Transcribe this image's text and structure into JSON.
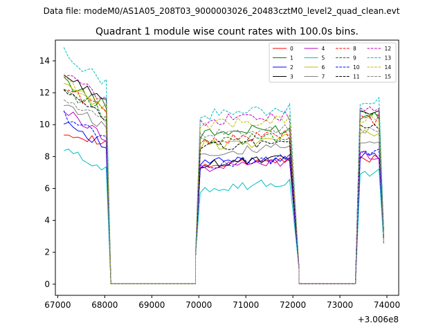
{
  "header": {
    "suptitle": "Data file: modeM0/AS1A05_208T03_9000003026_20483cztM0_level2_quad_clean.evt"
  },
  "chart_data": {
    "type": "line",
    "title": "Quadrant 1 module wise count rates with 100.0s bins.",
    "xlabel": "",
    "ylabel": "",
    "x_offset_label": "+3.006e8",
    "xlim": [
      66950,
      74250
    ],
    "ylim": [
      -0.7,
      15.3
    ],
    "xticks": [
      67000,
      68000,
      69000,
      70000,
      71000,
      72000,
      73000,
      74000
    ],
    "xtick_labels": [
      "67000",
      "68000",
      "69000",
      "70000",
      "71000",
      "72000",
      "73000",
      "74000"
    ],
    "yticks": [
      0,
      2,
      4,
      6,
      8,
      10,
      12,
      14
    ],
    "ytick_labels": [
      "0",
      "2",
      "4",
      "6",
      "8",
      "10",
      "12",
      "14"
    ],
    "segments": [
      {
        "x": [
          67130,
          67230,
          67330,
          67430,
          67530,
          67630,
          67730,
          67830,
          67930,
          68030
        ],
        "drop_end": 68130
      },
      {
        "x": [
          70030,
          70130,
          70230,
          70330,
          70430,
          70530,
          70630,
          70730,
          70830,
          70930,
          71030,
          71130,
          71230,
          71330,
          71430,
          71530,
          71630,
          71730,
          71830,
          71930
        ],
        "rise_start": 69930,
        "drop_end": 72130
      },
      {
        "x": [
          73430,
          73530,
          73630,
          73730,
          73830
        ],
        "rise_start": 73330,
        "drop_end": 73930
      }
    ],
    "gaps": [
      {
        "x": [
          68130,
          68230,
          68330,
          68430,
          68530,
          68630,
          68730,
          68830,
          68930,
          69030,
          69130,
          69230,
          69330,
          69430,
          69530,
          69630,
          69730,
          69830,
          69930
        ]
      },
      {
        "x": [
          72130,
          72230,
          72330,
          72430,
          72530,
          72630,
          72730,
          72830,
          72930,
          73030,
          73130,
          73230,
          73330
        ]
      }
    ],
    "legend": {
      "placement": "top-right",
      "ncol": 4
    },
    "series": [
      {
        "name": "0",
        "color": "#ff0000",
        "dash": false,
        "levels": [
          9.6,
          8.8,
          7.4,
          7.9
        ],
        "noise": 0.25
      },
      {
        "name": "1",
        "color": "#008000",
        "dash": false,
        "levels": [
          12.7,
          11.2,
          9.4,
          10.5
        ],
        "noise": 0.35
      },
      {
        "name": "2",
        "color": "#0000ff",
        "dash": false,
        "levels": [
          10.3,
          8.6,
          7.6,
          8.0
        ],
        "noise": 0.3
      },
      {
        "name": "3",
        "color": "#000000",
        "dash": false,
        "levels": [
          13.1,
          11.6,
          7.5,
          10.8
        ],
        "noise": 0.25
      },
      {
        "name": "4",
        "color": "#bf00bf",
        "dash": false,
        "levels": [
          10.9,
          9.2,
          7.3,
          8.1
        ],
        "noise": 0.3
      },
      {
        "name": "5",
        "color": "#00bfbf",
        "dash": false,
        "levels": [
          8.4,
          7.3,
          6.0,
          7.0
        ],
        "noise": 0.3
      },
      {
        "name": "6",
        "color": "#bfbf00",
        "dash": false,
        "levels": [
          12.5,
          10.9,
          8.7,
          9.6
        ],
        "noise": 0.35
      },
      {
        "name": "7",
        "color": "#808080",
        "dash": false,
        "levels": [
          11.4,
          9.8,
          8.2,
          9.0
        ],
        "noise": 0.3
      },
      {
        "name": "8",
        "color": "#ff0000",
        "dash": true,
        "levels": [
          12.3,
          10.9,
          9.0,
          10.3
        ],
        "noise": 0.35
      },
      {
        "name": "9",
        "color": "#008000",
        "dash": true,
        "levels": [
          12.2,
          10.6,
          8.9,
          10.6
        ],
        "noise": 0.35
      },
      {
        "name": "10",
        "color": "#0000ff",
        "dash": true,
        "levels": [
          10.6,
          9.1,
          7.5,
          8.2
        ],
        "noise": 0.3
      },
      {
        "name": "11",
        "color": "#000000",
        "dash": true,
        "levels": [
          12.0,
          10.4,
          8.6,
          10.0
        ],
        "noise": 0.3
      },
      {
        "name": "12",
        "color": "#bf00bf",
        "dash": true,
        "levels": [
          13.2,
          11.5,
          10.2,
          10.9
        ],
        "noise": 0.35
      },
      {
        "name": "13",
        "color": "#00bfbf",
        "dash": true,
        "levels": [
          14.5,
          12.6,
          10.6,
          11.6
        ],
        "noise": 0.35
      },
      {
        "name": "14",
        "color": "#bfbf00",
        "dash": true,
        "levels": [
          12.8,
          11.0,
          10.0,
          10.4
        ],
        "noise": 0.35
      },
      {
        "name": "15",
        "color": "#808080",
        "dash": true,
        "levels": [
          11.6,
          10.2,
          9.4,
          9.6
        ],
        "noise": 0.3
      }
    ]
  }
}
